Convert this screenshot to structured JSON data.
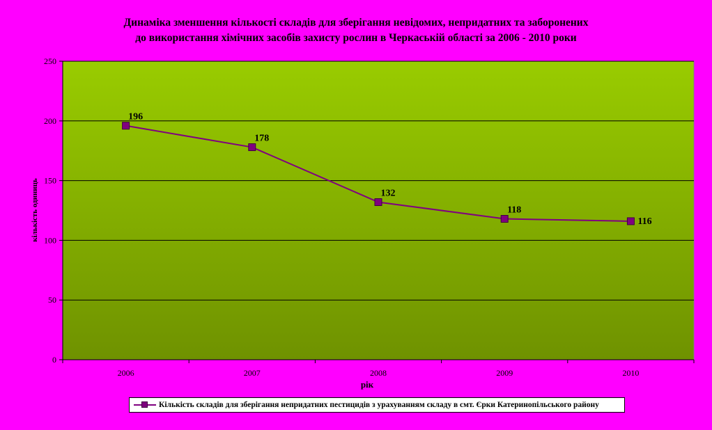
{
  "chart_data": {
    "type": "line",
    "title_lines": [
      "Динаміка зменшення кількості  складів для зберігання невідомих, непридатних та заборонених",
      "до використання хімічних засобів захисту рослин в Черкаській області за 2006 - 2010 роки"
    ],
    "xlabel": "рік",
    "ylabel": "кількість одиниць",
    "categories": [
      "2006",
      "2007",
      "2008",
      "2009",
      "2010"
    ],
    "ylim": [
      0,
      250
    ],
    "yticks": [
      0,
      50,
      100,
      150,
      200,
      250
    ],
    "grid": true,
    "legend_position": "bottom",
    "series": [
      {
        "name": "Кількість складів для зберігання непридатних пестицидів  з урахуванням складу в смт. Єрки Катеринопільського району",
        "values": [
          196,
          178,
          132,
          118,
          116
        ],
        "color": "#800080"
      }
    ],
    "plot_background": [
      "#99cc00",
      "#6f9200"
    ],
    "page_background": "#ff00ff"
  }
}
